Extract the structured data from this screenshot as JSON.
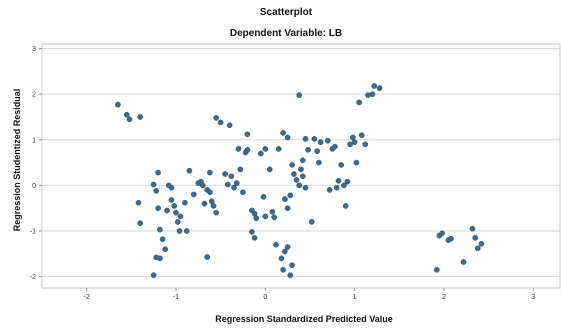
{
  "chart_data": {
    "type": "scatter",
    "title": "Scatterplot",
    "subtitle": "Dependent Variable: LB",
    "xlabel": "Regression Standardized Predicted Value",
    "ylabel": "Regression Studentized Residual",
    "xlim": [
      -2.5,
      3.3
    ],
    "ylim": [
      -2.25,
      3.1
    ],
    "x_ticks": [
      "-2",
      "-1",
      "0",
      "1",
      "2",
      "3"
    ],
    "y_ticks": [
      "-2",
      "-1",
      "0",
      "1",
      "2",
      "3"
    ],
    "grid": "horizontal",
    "point_color": "#3E6A8C",
    "points": [
      [
        -1.65,
        1.77
      ],
      [
        -1.55,
        1.55
      ],
      [
        -1.52,
        1.45
      ],
      [
        -1.4,
        1.5
      ],
      [
        -1.42,
        -0.38
      ],
      [
        -1.4,
        -0.83
      ],
      [
        -1.25,
        0.02
      ],
      [
        -1.22,
        -0.12
      ],
      [
        -1.2,
        0.28
      ],
      [
        -1.2,
        -0.5
      ],
      [
        -1.18,
        -0.97
      ],
      [
        -1.15,
        -1.18
      ],
      [
        -1.22,
        -1.58
      ],
      [
        -1.18,
        -1.6
      ],
      [
        -1.25,
        -1.97
      ],
      [
        -1.12,
        -1.4
      ],
      [
        -1.1,
        -0.55
      ],
      [
        -1.08,
        0.0
      ],
      [
        -1.05,
        -0.05
      ],
      [
        -1.05,
        -0.32
      ],
      [
        -1.02,
        -0.45
      ],
      [
        -1.0,
        -0.6
      ],
      [
        -0.98,
        -0.8
      ],
      [
        -0.96,
        -1.0
      ],
      [
        -0.95,
        -0.68
      ],
      [
        -0.9,
        -0.38
      ],
      [
        -0.88,
        -1.0
      ],
      [
        -0.85,
        0.32
      ],
      [
        -0.8,
        -0.2
      ],
      [
        -0.75,
        0.05
      ],
      [
        -0.72,
        0.08
      ],
      [
        -0.7,
        0.0
      ],
      [
        -0.68,
        -0.4
      ],
      [
        -0.65,
        -0.1
      ],
      [
        -0.62,
        -0.15
      ],
      [
        -0.6,
        -0.35
      ],
      [
        -0.58,
        -0.45
      ],
      [
        -0.55,
        -0.6
      ],
      [
        -0.65,
        -1.57
      ],
      [
        -0.62,
        0.28
      ],
      [
        -0.55,
        1.48
      ],
      [
        -0.5,
        1.38
      ],
      [
        -0.45,
        0.25
      ],
      [
        -0.42,
        0.02
      ],
      [
        -0.4,
        1.32
      ],
      [
        -0.38,
        0.2
      ],
      [
        -0.35,
        -0.05
      ],
      [
        -0.32,
        0.05
      ],
      [
        -0.3,
        0.8
      ],
      [
        -0.28,
        0.35
      ],
      [
        -0.25,
        -0.15
      ],
      [
        -0.22,
        0.72
      ],
      [
        -0.2,
        0.78
      ],
      [
        -0.2,
        1.12
      ],
      [
        -0.15,
        -0.55
      ],
      [
        -0.12,
        -0.62
      ],
      [
        -0.1,
        -0.72
      ],
      [
        -0.15,
        -1.02
      ],
      [
        -0.12,
        -1.15
      ],
      [
        -0.05,
        0.7
      ],
      [
        0.0,
        0.8
      ],
      [
        -0.02,
        -0.25
      ],
      [
        0.0,
        -0.68
      ],
      [
        0.05,
        0.35
      ],
      [
        0.08,
        -0.58
      ],
      [
        0.1,
        -0.7
      ],
      [
        0.12,
        -1.3
      ],
      [
        0.15,
        0.8
      ],
      [
        0.18,
        -1.6
      ],
      [
        0.2,
        -1.85
      ],
      [
        0.22,
        -1.45
      ],
      [
        0.25,
        -1.35
      ],
      [
        0.28,
        -1.97
      ],
      [
        0.3,
        -1.75
      ],
      [
        0.2,
        1.15
      ],
      [
        0.25,
        1.05
      ],
      [
        0.22,
        -0.3
      ],
      [
        0.25,
        -0.5
      ],
      [
        0.28,
        -0.22
      ],
      [
        0.3,
        0.45
      ],
      [
        0.32,
        0.25
      ],
      [
        0.35,
        0.12
      ],
      [
        0.38,
        0.0
      ],
      [
        0.4,
        0.35
      ],
      [
        0.42,
        0.55
      ],
      [
        0.42,
        0.2
      ],
      [
        0.45,
        -0.05
      ],
      [
        0.38,
        1.98
      ],
      [
        0.45,
        1.02
      ],
      [
        0.48,
        0.78
      ],
      [
        0.52,
        -0.8
      ],
      [
        0.55,
        1.02
      ],
      [
        0.58,
        0.75
      ],
      [
        0.6,
        0.5
      ],
      [
        0.62,
        0.95
      ],
      [
        0.7,
        0.98
      ],
      [
        0.72,
        -0.1
      ],
      [
        0.75,
        0.8
      ],
      [
        0.78,
        0.85
      ],
      [
        0.8,
        -0.05
      ],
      [
        0.82,
        0.1
      ],
      [
        0.85,
        0.45
      ],
      [
        0.88,
        0.0
      ],
      [
        0.9,
        -0.45
      ],
      [
        0.92,
        0.08
      ],
      [
        0.95,
        0.9
      ],
      [
        0.98,
        1.05
      ],
      [
        1.0,
        0.95
      ],
      [
        1.02,
        0.5
      ],
      [
        1.05,
        1.82
      ],
      [
        1.08,
        1.1
      ],
      [
        1.12,
        0.9
      ],
      [
        1.15,
        1.98
      ],
      [
        1.2,
        2.0
      ],
      [
        1.22,
        2.18
      ],
      [
        1.28,
        2.13
      ],
      [
        1.92,
        -1.85
      ],
      [
        1.95,
        -1.1
      ],
      [
        1.98,
        -1.05
      ],
      [
        2.05,
        -1.2
      ],
      [
        2.08,
        -1.17
      ],
      [
        2.22,
        -1.68
      ],
      [
        2.32,
        -0.95
      ],
      [
        2.35,
        -1.15
      ],
      [
        2.38,
        -1.38
      ],
      [
        2.42,
        -1.28
      ]
    ]
  }
}
